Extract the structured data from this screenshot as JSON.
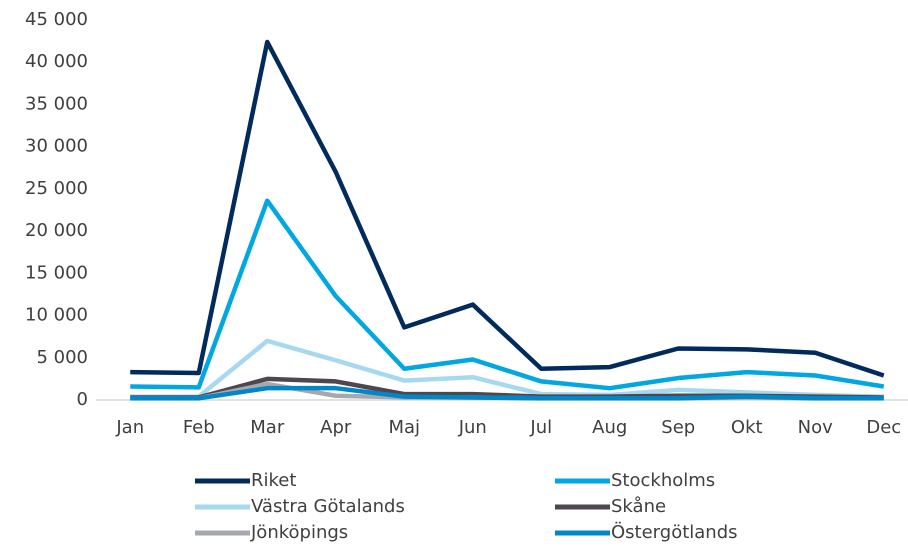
{
  "chart_data": {
    "type": "line",
    "categories": [
      "Jan",
      "Feb",
      "Mar",
      "Apr",
      "Maj",
      "Jun",
      "Jul",
      "Aug",
      "Sep",
      "Okt",
      "Nov",
      "Dec"
    ],
    "series": [
      {
        "name": "Riket",
        "color": "#002b5c",
        "values": [
          3300,
          3200,
          42400,
          27000,
          8600,
          11300,
          3700,
          3900,
          6100,
          6000,
          5600,
          2900
        ]
      },
      {
        "name": "Stockholms",
        "color": "#00a7e1",
        "values": [
          1600,
          1500,
          23600,
          12300,
          3700,
          4800,
          2200,
          1400,
          2600,
          3300,
          2900,
          1600
        ]
      },
      {
        "name": "Västra Götalands",
        "color": "#a6d9f0",
        "values": [
          400,
          400,
          7000,
          4700,
          2300,
          2700,
          700,
          600,
          1200,
          900,
          600,
          400
        ]
      },
      {
        "name": "Skåne",
        "color": "#4f4650",
        "values": [
          300,
          300,
          2500,
          2200,
          700,
          700,
          400,
          400,
          500,
          500,
          400,
          300
        ]
      },
      {
        "name": "Jönköpings",
        "color": "#a6a8b0",
        "values": [
          200,
          200,
          1900,
          500,
          300,
          300,
          200,
          200,
          200,
          300,
          200,
          200
        ]
      },
      {
        "name": "Östergötlands",
        "color": "#0087c8",
        "values": [
          200,
          200,
          1400,
          1400,
          400,
          300,
          200,
          200,
          200,
          400,
          200,
          200
        ]
      }
    ],
    "ylim": [
      0,
      45000
    ],
    "yticks": [
      0,
      {
        "value": 5000,
        "label": "5 000"
      },
      {
        "value": 10000,
        "label": "10 000"
      },
      {
        "value": 15000,
        "label": "15 000"
      },
      {
        "value": 20000,
        "label": "20 000"
      },
      {
        "value": 25000,
        "label": "25 000"
      },
      {
        "value": 30000,
        "label": "30 000"
      },
      {
        "value": 35000,
        "label": "35 000"
      },
      {
        "value": 40000,
        "label": "40 000"
      },
      {
        "value": 45000,
        "label": "45 000"
      }
    ],
    "grid": false,
    "legend": "bottom"
  }
}
